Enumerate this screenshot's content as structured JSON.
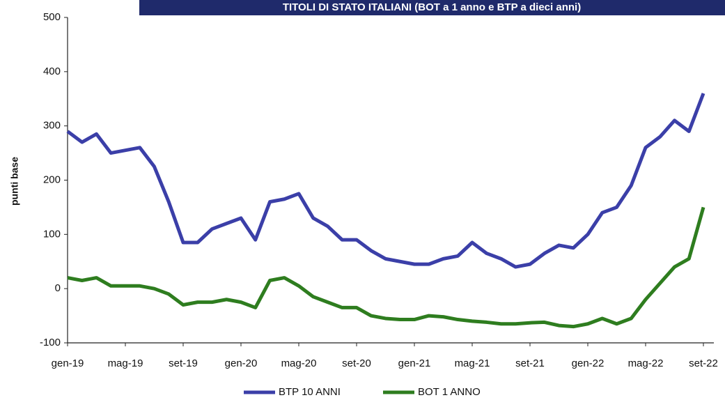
{
  "chart_data": {
    "type": "line",
    "title": "TITOLI DI STATO ITALIANI (BOT a 1 anno e BTP a dieci anni)",
    "y_label": "punti base",
    "categories": [
      "gen-19",
      null,
      null,
      null,
      "mag-19",
      null,
      null,
      null,
      "set-19",
      null,
      null,
      null,
      "gen-20",
      null,
      null,
      null,
      "mag-20",
      null,
      null,
      null,
      "set-20",
      null,
      null,
      null,
      "gen-21",
      null,
      null,
      null,
      "mag-21",
      null,
      null,
      null,
      "set-21",
      null,
      null,
      null,
      "gen-22",
      null,
      null,
      null,
      "mag-22",
      null,
      null,
      null,
      "set-22"
    ],
    "series": [
      {
        "name": "BTP 10 ANNI",
        "color": "#3b3fa8",
        "values": [
          290,
          270,
          285,
          250,
          255,
          260,
          225,
          160,
          85,
          85,
          110,
          120,
          130,
          90,
          160,
          165,
          175,
          130,
          115,
          90,
          90,
          70,
          55,
          50,
          45,
          45,
          55,
          60,
          85,
          65,
          55,
          40,
          45,
          65,
          80,
          75,
          100,
          140,
          150,
          190,
          260,
          280,
          310,
          290,
          360
        ]
      },
      {
        "name": "BOT 1 ANNO",
        "color": "#2e7d1f",
        "values": [
          20,
          15,
          20,
          5,
          5,
          5,
          0,
          -10,
          -30,
          -25,
          -25,
          -20,
          -25,
          -35,
          15,
          20,
          5,
          -15,
          -25,
          -35,
          -35,
          -50,
          -55,
          -57,
          -57,
          -50,
          -52,
          -57,
          -60,
          -62,
          -65,
          -65,
          -63,
          -62,
          -68,
          -70,
          -65,
          -55,
          -65,
          -55,
          -20,
          10,
          40,
          55,
          150
        ]
      }
    ],
    "ylim": [
      -100,
      500
    ],
    "yticks": [
      -100,
      0,
      100,
      200,
      300,
      400,
      500
    ],
    "grid": false,
    "legend": "bottom"
  }
}
